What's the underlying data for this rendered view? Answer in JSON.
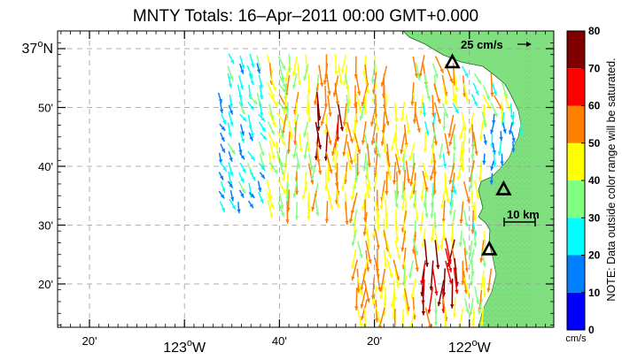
{
  "title": "MNTY Totals: 16–Apr–2011 00:00 GMT+0.000",
  "lat_labels": [
    {
      "text": "37",
      "super": "o",
      "suffix": "N",
      "lat": 37.0
    },
    {
      "text": "50'",
      "lat": 36.8333
    },
    {
      "text": "40'",
      "lat": 36.6667
    },
    {
      "text": "30'",
      "lat": 36.5
    },
    {
      "text": "20'",
      "lat": 36.3333
    }
  ],
  "lon_labels": [
    {
      "text": "20'",
      "lon": -123.3333,
      "major": false
    },
    {
      "text": "123",
      "super": "o",
      "suffix": "W",
      "lon": -123.0,
      "major": true
    },
    {
      "text": "40'",
      "lon": -122.6667,
      "major": false
    },
    {
      "text": "20'",
      "lon": -122.3333,
      "major": false
    },
    {
      "text": "122",
      "super": "o",
      "suffix": "W",
      "lon": -122.0,
      "major": true
    }
  ],
  "speed_label": "25 cm/s",
  "scale_label": "10 km",
  "colorbar": {
    "ticks": [
      "0",
      "10",
      "20",
      "30",
      "40",
      "50",
      "60",
      "70",
      "80"
    ],
    "colors": [
      "#0000ff",
      "#0080ff",
      "#00ffff",
      "#80ff80",
      "#ffff00",
      "#ff8000",
      "#ff0000",
      "#800000"
    ],
    "unit": "cm/s",
    "note": "NOTE: Data outside color range will be saturated."
  },
  "land_color": "#80e080",
  "stations": [
    {
      "lat": 36.96,
      "lon": -122.06
    },
    {
      "lat": 36.6,
      "lon": -121.88
    },
    {
      "lat": 36.43,
      "lon": -121.93
    }
  ]
}
